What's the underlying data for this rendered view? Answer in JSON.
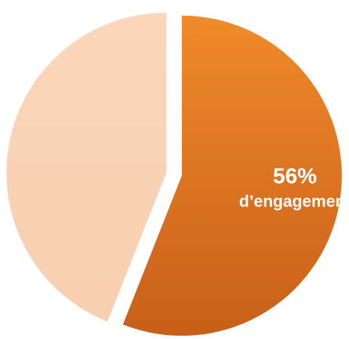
{
  "chart_data": {
    "type": "pie",
    "slices": [
      {
        "value": 56,
        "color": "#e57b24",
        "label_value": "56%",
        "label_text": "d’engagement"
      },
      {
        "value": 44,
        "color": "#f9d3b6"
      }
    ]
  }
}
